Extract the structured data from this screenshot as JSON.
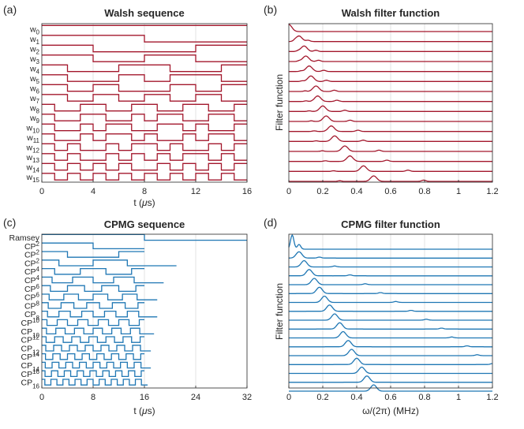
{
  "colors": {
    "walsh": "#a3172c",
    "cpmg": "#1f77b4"
  },
  "chart_data": [
    {
      "panel_label": "(a)",
      "title": "Walsh sequence",
      "type": "line",
      "xlabel_main": "t (",
      "xlabel_mu": "μ",
      "xlabel_end": "s)",
      "xlim": [
        0,
        16
      ],
      "xticks": [
        "0",
        "4",
        "8",
        "12",
        "16"
      ],
      "series": [
        {
          "name": "w",
          "sub": "0",
          "segments": [
            [
              0,
              16,
              1
            ]
          ]
        },
        {
          "name": "w",
          "sub": "1",
          "segments": [
            [
              0,
              8,
              1
            ],
            [
              8,
              16,
              -1
            ]
          ]
        },
        {
          "name": "w",
          "sub": "2",
          "segments": [
            [
              0,
              4,
              1
            ],
            [
              4,
              12,
              -1
            ],
            [
              12,
              16,
              1
            ]
          ]
        },
        {
          "name": "w",
          "sub": "3",
          "segments": [
            [
              0,
              4,
              1
            ],
            [
              4,
              8,
              -1
            ],
            [
              8,
              12,
              1
            ],
            [
              12,
              16,
              -1
            ]
          ]
        },
        {
          "name": "w",
          "sub": "4",
          "segments": [
            [
              0,
              2,
              1
            ],
            [
              2,
              6,
              -1
            ],
            [
              6,
              10,
              1
            ],
            [
              10,
              14,
              -1
            ],
            [
              14,
              16,
              1
            ]
          ]
        },
        {
          "name": "w",
          "sub": "5",
          "segments": [
            [
              0,
              2,
              1
            ],
            [
              2,
              6,
              -1
            ],
            [
              6,
              8,
              1
            ],
            [
              8,
              10,
              -1
            ],
            [
              10,
              14,
              1
            ],
            [
              14,
              16,
              -1
            ]
          ]
        },
        {
          "name": "w",
          "sub": "6",
          "segments": [
            [
              0,
              2,
              1
            ],
            [
              2,
              4,
              -1
            ],
            [
              4,
              6,
              1
            ],
            [
              6,
              10,
              -1
            ],
            [
              10,
              12,
              1
            ],
            [
              12,
              14,
              -1
            ],
            [
              14,
              16,
              1
            ]
          ]
        },
        {
          "name": "w",
          "sub": "7",
          "segments": [
            [
              0,
              2,
              1
            ],
            [
              2,
              4,
              -1
            ],
            [
              4,
              6,
              1
            ],
            [
              6,
              8,
              -1
            ],
            [
              8,
              10,
              1
            ],
            [
              10,
              12,
              -1
            ],
            [
              12,
              14,
              1
            ],
            [
              14,
              16,
              -1
            ]
          ]
        },
        {
          "name": "w",
          "sub": "8",
          "segments": [
            [
              0,
              1,
              1
            ],
            [
              1,
              3,
              -1
            ],
            [
              3,
              5,
              1
            ],
            [
              5,
              7,
              -1
            ],
            [
              7,
              9,
              1
            ],
            [
              9,
              11,
              -1
            ],
            [
              11,
              13,
              1
            ],
            [
              13,
              15,
              -1
            ],
            [
              15,
              16,
              1
            ]
          ]
        },
        {
          "name": "w",
          "sub": "9",
          "segments": [
            [
              0,
              1,
              1
            ],
            [
              1,
              3,
              -1
            ],
            [
              3,
              5,
              1
            ],
            [
              5,
              7,
              -1
            ],
            [
              7,
              8,
              1
            ],
            [
              8,
              9,
              -1
            ],
            [
              9,
              11,
              1
            ],
            [
              11,
              13,
              -1
            ],
            [
              13,
              15,
              1
            ],
            [
              15,
              16,
              -1
            ]
          ]
        },
        {
          "name": "w",
          "sub": "10",
          "segments": [
            [
              0,
              1,
              1
            ],
            [
              1,
              3,
              -1
            ],
            [
              3,
              4,
              1
            ],
            [
              4,
              5,
              -1
            ],
            [
              5,
              7,
              1
            ],
            [
              7,
              9,
              -1
            ],
            [
              9,
              11,
              1
            ],
            [
              11,
              12,
              -1
            ],
            [
              12,
              13,
              1
            ],
            [
              13,
              15,
              -1
            ],
            [
              15,
              16,
              1
            ]
          ]
        },
        {
          "name": "w",
          "sub": "11",
          "segments": [
            [
              0,
              1,
              1
            ],
            [
              1,
              3,
              -1
            ],
            [
              3,
              4,
              1
            ],
            [
              4,
              5,
              -1
            ],
            [
              5,
              7,
              1
            ],
            [
              7,
              8,
              -1
            ],
            [
              8,
              9,
              1
            ],
            [
              9,
              11,
              -1
            ],
            [
              11,
              12,
              1
            ],
            [
              12,
              13,
              -1
            ],
            [
              13,
              15,
              1
            ],
            [
              15,
              16,
              -1
            ]
          ]
        },
        {
          "name": "w",
          "sub": "12",
          "segments": [
            [
              0,
              1,
              1
            ],
            [
              1,
              2,
              -1
            ],
            [
              2,
              3,
              1
            ],
            [
              3,
              5,
              -1
            ],
            [
              5,
              6,
              1
            ],
            [
              6,
              7,
              -1
            ],
            [
              7,
              9,
              1
            ],
            [
              9,
              10,
              -1
            ],
            [
              10,
              11,
              1
            ],
            [
              11,
              13,
              -1
            ],
            [
              13,
              14,
              1
            ],
            [
              14,
              15,
              -1
            ],
            [
              15,
              16,
              1
            ]
          ]
        },
        {
          "name": "w",
          "sub": "13",
          "segments": [
            [
              0,
              1,
              1
            ],
            [
              1,
              2,
              -1
            ],
            [
              2,
              3,
              1
            ],
            [
              3,
              5,
              -1
            ],
            [
              5,
              6,
              1
            ],
            [
              6,
              7,
              -1
            ],
            [
              7,
              8,
              1
            ],
            [
              8,
              9,
              -1
            ],
            [
              9,
              10,
              1
            ],
            [
              10,
              11,
              -1
            ],
            [
              11,
              13,
              1
            ],
            [
              13,
              14,
              -1
            ],
            [
              14,
              15,
              1
            ],
            [
              15,
              16,
              -1
            ]
          ]
        },
        {
          "name": "w",
          "sub": "14",
          "segments": [
            [
              0,
              1,
              1
            ],
            [
              1,
              2,
              -1
            ],
            [
              2,
              3,
              1
            ],
            [
              3,
              4,
              -1
            ],
            [
              4,
              5,
              1
            ],
            [
              5,
              6,
              -1
            ],
            [
              6,
              7,
              1
            ],
            [
              7,
              9,
              -1
            ],
            [
              9,
              10,
              1
            ],
            [
              10,
              11,
              -1
            ],
            [
              11,
              12,
              1
            ],
            [
              12,
              13,
              -1
            ],
            [
              13,
              14,
              1
            ],
            [
              14,
              15,
              -1
            ],
            [
              15,
              16,
              1
            ]
          ]
        },
        {
          "name": "w",
          "sub": "15",
          "segments": [
            [
              0,
              1,
              1
            ],
            [
              1,
              2,
              -1
            ],
            [
              2,
              3,
              1
            ],
            [
              3,
              4,
              -1
            ],
            [
              4,
              5,
              1
            ],
            [
              5,
              6,
              -1
            ],
            [
              6,
              7,
              1
            ],
            [
              7,
              8,
              -1
            ],
            [
              8,
              9,
              1
            ],
            [
              9,
              10,
              -1
            ],
            [
              10,
              11,
              1
            ],
            [
              11,
              12,
              -1
            ],
            [
              12,
              13,
              1
            ],
            [
              13,
              14,
              -1
            ],
            [
              14,
              15,
              1
            ],
            [
              15,
              16,
              -1
            ]
          ]
        }
      ]
    },
    {
      "panel_label": "(b)",
      "title": "Walsh filter function",
      "type": "line",
      "ylabel": "Filter function",
      "xlim": [
        0,
        1.2
      ],
      "xticks": [
        "0",
        "0.2",
        "0.4",
        "0.6",
        "0.8",
        "1",
        "1.2"
      ],
      "peaks": [
        0.0,
        0.06,
        0.09,
        0.1,
        0.12,
        0.13,
        0.16,
        0.17,
        0.2,
        0.22,
        0.25,
        0.27,
        0.33,
        0.36,
        0.44,
        0.5
      ]
    },
    {
      "panel_label": "(c)",
      "title": "CPMG sequence",
      "type": "line",
      "xlabel_main": "t (",
      "xlabel_mu": "μ",
      "xlabel_end": "s)",
      "xlim": [
        0,
        32
      ],
      "xticks": [
        "0",
        "8",
        "16",
        "24",
        "32"
      ],
      "series": [
        {
          "name": "Ramsey",
          "sup": "",
          "sub": "",
          "n": 0,
          "T": 32
        },
        {
          "name": "CP",
          "sup": "2",
          "sub": "",
          "n": 1,
          "T": 16
        },
        {
          "name": "CP",
          "sup": "2",
          "sub": "",
          "n": 2,
          "T": 16
        },
        {
          "name": "CP",
          "sup": "2",
          "sub": "",
          "n": 3,
          "T": 21
        },
        {
          "name": "CP",
          "sup": "4",
          "sub": "",
          "n": 4,
          "T": 16
        },
        {
          "name": "CP",
          "sup": "4",
          "sub": "",
          "n": 5,
          "T": 19
        },
        {
          "name": "CP",
          "sup": "6",
          "sub": "",
          "n": 6,
          "T": 16
        },
        {
          "name": "CP",
          "sup": "6",
          "sub": "",
          "n": 7,
          "T": 18
        },
        {
          "name": "CP",
          "sup": "8",
          "sub": "",
          "n": 8,
          "T": 16
        },
        {
          "name": "CP",
          "sup": "",
          "sub": "8",
          "n": 9,
          "T": 18
        },
        {
          "name": "CP",
          "sup": "10",
          "sub": "",
          "n": 10,
          "T": 16
        },
        {
          "name": "CP",
          "sup": "",
          "sub": "10",
          "n": 11,
          "T": 17.5
        },
        {
          "name": "CP",
          "sup": "12",
          "sub": "",
          "n": 12,
          "T": 16
        },
        {
          "name": "CP",
          "sup": "",
          "sub": "12",
          "n": 13,
          "T": 17
        },
        {
          "name": "CP",
          "sup": "14",
          "sub": "",
          "n": 14,
          "T": 16
        },
        {
          "name": "CP",
          "sup": "",
          "sub": "14",
          "n": 15,
          "T": 17
        },
        {
          "name": "CP",
          "sup": "16",
          "sub": "",
          "n": 16,
          "T": 16
        },
        {
          "name": "CP",
          "sup": "",
          "sub": "16",
          "n": 17,
          "T": 16.5
        }
      ]
    },
    {
      "panel_label": "(d)",
      "title": "CPMG filter function",
      "type": "line",
      "ylabel": "Filter function",
      "xlabel": "ω/(2π) (MHz)",
      "xlim": [
        0,
        1.2
      ],
      "xticks": [
        "0",
        "0.2",
        "0.4",
        "0.6",
        "0.8",
        "1",
        "1.2"
      ],
      "peaks": [
        0.02,
        0.06,
        0.09,
        0.12,
        0.15,
        0.18,
        0.21,
        0.24,
        0.27,
        0.3,
        0.32,
        0.35,
        0.37,
        0.4,
        0.43,
        0.46,
        0.5
      ]
    }
  ]
}
